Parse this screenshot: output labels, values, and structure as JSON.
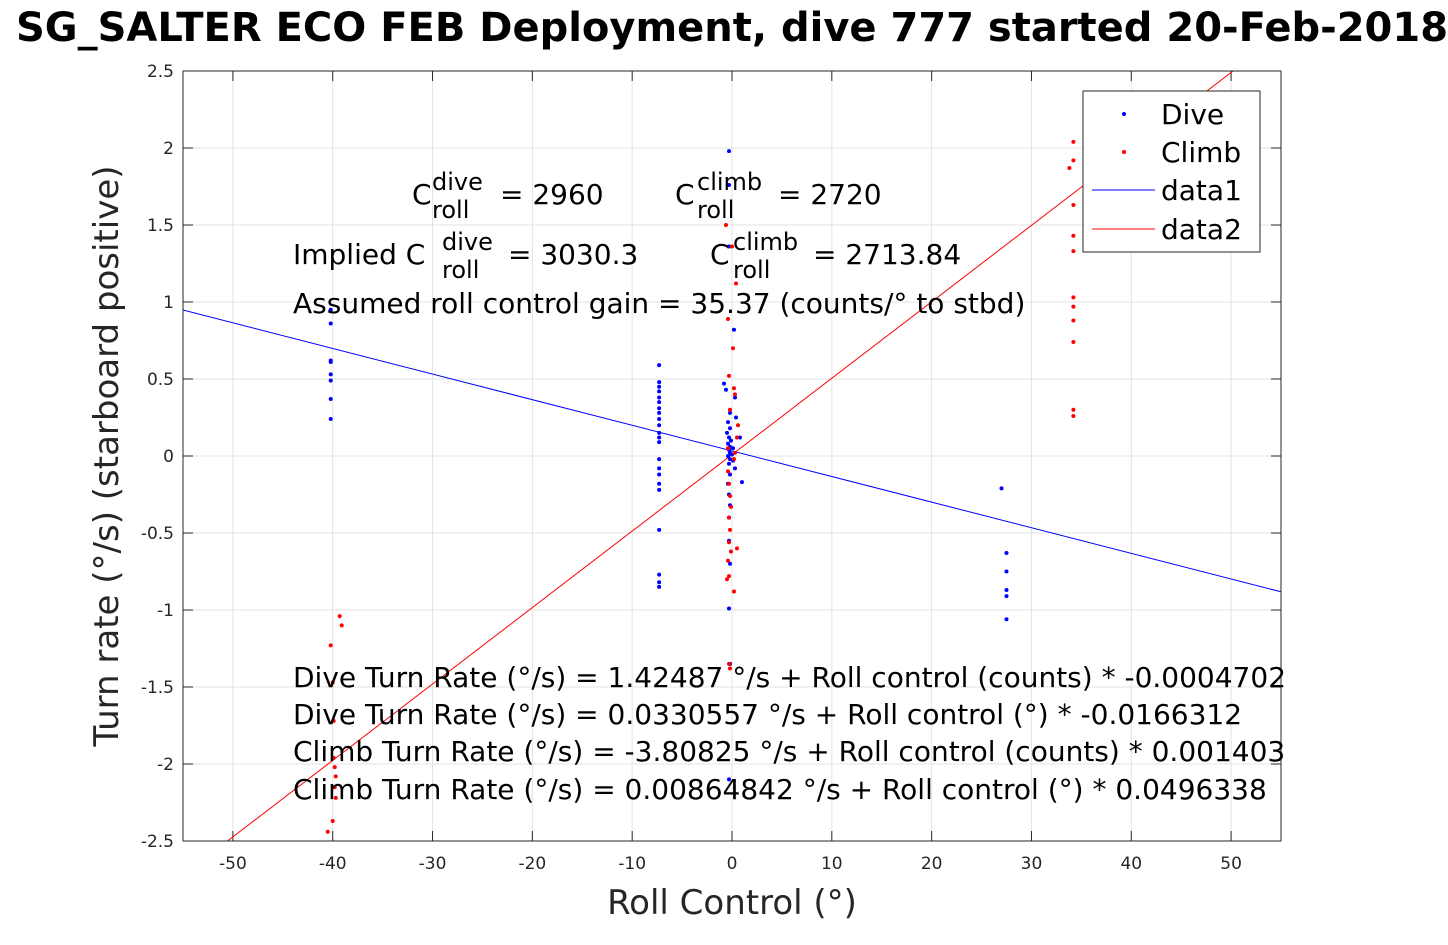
{
  "title": "SG_SALTER ECO FEB Deployment, dive 777 started 20-Feb-2018",
  "chart_data": {
    "type": "scatter",
    "xlabel": "Roll Control (°)",
    "ylabel": "Turn rate (°/s) (starboard positive)",
    "xlim": [
      -55,
      55
    ],
    "ylim": [
      -2.5,
      2.5
    ],
    "xticks": [
      -50,
      -40,
      -30,
      -20,
      -10,
      0,
      10,
      20,
      30,
      40,
      50
    ],
    "yticks": [
      -2.5,
      -2,
      -1.5,
      -1,
      -0.5,
      0,
      0.5,
      1,
      1.5,
      2,
      2.5
    ],
    "xtick_labels": [
      "-50",
      "-40",
      "-30",
      "-20",
      "-10",
      "0",
      "10",
      "20",
      "30",
      "40",
      "50"
    ],
    "ytick_labels": [
      "-2.5",
      "-2",
      "-1.5",
      "-1",
      "-0.5",
      "0",
      "0.5",
      "1",
      "1.5",
      "2",
      "2.5"
    ],
    "grid": true,
    "legend_position": "top-right",
    "legend": [
      "Dive",
      "Climb",
      "data1",
      "data2"
    ],
    "colors": {
      "dive": "#0000ff",
      "climb": "#ff0000"
    },
    "series": [
      {
        "name": "Dive",
        "kind": "points",
        "color": "#0000ff",
        "points": [
          [
            -40.2,
            0.95
          ],
          [
            -40.2,
            0.86
          ],
          [
            -40.2,
            0.62
          ],
          [
            -40.2,
            0.61
          ],
          [
            -40.2,
            0.53
          ],
          [
            -40.2,
            0.49
          ],
          [
            -40.2,
            0.37
          ],
          [
            -40.2,
            0.24
          ],
          [
            -7.3,
            0.59
          ],
          [
            -7.3,
            0.48
          ],
          [
            -7.3,
            0.45
          ],
          [
            -7.3,
            0.42
          ],
          [
            -7.3,
            0.38
          ],
          [
            -7.3,
            0.35
          ],
          [
            -7.3,
            0.31
          ],
          [
            -7.3,
            0.28
          ],
          [
            -7.3,
            0.24
          ],
          [
            -7.3,
            0.2
          ],
          [
            -7.3,
            0.15
          ],
          [
            -7.3,
            0.12
          ],
          [
            -7.3,
            0.09
          ],
          [
            -7.3,
            -0.02
          ],
          [
            -7.3,
            -0.08
          ],
          [
            -7.3,
            -0.12
          ],
          [
            -7.3,
            -0.18
          ],
          [
            -7.3,
            -0.22
          ],
          [
            -7.3,
            -0.48
          ],
          [
            -7.3,
            -0.77
          ],
          [
            -7.3,
            -0.82
          ],
          [
            -7.3,
            -0.85
          ],
          [
            -0.3,
            1.98
          ],
          [
            -0.3,
            1.76
          ],
          [
            -0.3,
            1.36
          ],
          [
            0.2,
            0.82
          ],
          [
            -0.8,
            0.47
          ],
          [
            -0.6,
            0.43
          ],
          [
            0.3,
            0.38
          ],
          [
            -0.2,
            0.28
          ],
          [
            0.4,
            0.25
          ],
          [
            -0.4,
            0.22
          ],
          [
            -0.2,
            0.18
          ],
          [
            -0.5,
            0.15
          ],
          [
            -0.3,
            0.12
          ],
          [
            -0.1,
            0.1
          ],
          [
            -0.4,
            0.08
          ],
          [
            -0.2,
            0.06
          ],
          [
            0.1,
            0.05
          ],
          [
            -0.3,
            0.04
          ],
          [
            -0.2,
            0.02
          ],
          [
            0.0,
            0.01
          ],
          [
            -0.4,
            0.0
          ],
          [
            -0.2,
            -0.02
          ],
          [
            0.1,
            -0.03
          ],
          [
            -0.3,
            -0.05
          ],
          [
            0.3,
            -0.08
          ],
          [
            -0.2,
            -0.12
          ],
          [
            -0.4,
            -0.18
          ],
          [
            -0.3,
            -0.25
          ],
          [
            -0.2,
            -0.32
          ],
          [
            -0.3,
            -0.4
          ],
          [
            -0.3,
            -0.55
          ],
          [
            -0.2,
            -0.7
          ],
          [
            -0.3,
            -0.99
          ],
          [
            -0.2,
            -1.35
          ],
          [
            -0.3,
            -2.1
          ],
          [
            0.8,
            0.12
          ],
          [
            1.0,
            -0.17
          ],
          [
            27.0,
            -0.21
          ],
          [
            27.5,
            -0.63
          ],
          [
            27.5,
            -0.75
          ],
          [
            27.5,
            -0.87
          ],
          [
            27.5,
            -0.91
          ],
          [
            27.5,
            -1.06
          ]
        ]
      },
      {
        "name": "Climb",
        "kind": "points",
        "color": "#ff0000",
        "points": [
          [
            -40.2,
            -1.23
          ],
          [
            -39.3,
            -1.04
          ],
          [
            -39.1,
            -1.1
          ],
          [
            -40.0,
            -1.47
          ],
          [
            -39.9,
            -1.72
          ],
          [
            -39.8,
            -2.02
          ],
          [
            -39.8,
            -2.15
          ],
          [
            -39.7,
            -2.22
          ],
          [
            -40.0,
            -2.37
          ],
          [
            -40.5,
            -2.44
          ],
          [
            -39.9,
            -1.96
          ],
          [
            -39.7,
            -2.08
          ],
          [
            -0.6,
            1.5
          ],
          [
            0.4,
            1.12
          ],
          [
            -0.4,
            0.89
          ],
          [
            0.1,
            0.7
          ],
          [
            -0.3,
            0.52
          ],
          [
            0.2,
            0.44
          ],
          [
            0.3,
            0.4
          ],
          [
            -0.2,
            0.3
          ],
          [
            0.6,
            0.2
          ],
          [
            0.5,
            0.12
          ],
          [
            -0.4,
            0.05
          ],
          [
            0.3,
            0.02
          ],
          [
            0.2,
            -0.02
          ],
          [
            -0.4,
            -0.1
          ],
          [
            -0.3,
            -0.18
          ],
          [
            -0.2,
            -0.26
          ],
          [
            -0.1,
            -0.33
          ],
          [
            -0.3,
            -0.4
          ],
          [
            -0.2,
            -0.48
          ],
          [
            -0.3,
            -0.56
          ],
          [
            0.5,
            -0.6
          ],
          [
            -0.4,
            -0.68
          ],
          [
            -0.3,
            -0.78
          ],
          [
            0.2,
            -0.88
          ],
          [
            -0.3,
            -1.35
          ],
          [
            -0.2,
            -1.38
          ],
          [
            -0.5,
            -0.8
          ],
          [
            -0.1,
            -0.62
          ],
          [
            0.0,
            1.36
          ],
          [
            33.8,
            1.87
          ],
          [
            34.2,
            2.04
          ],
          [
            34.2,
            1.92
          ],
          [
            34.2,
            1.63
          ],
          [
            34.2,
            1.43
          ],
          [
            34.2,
            1.33
          ],
          [
            34.2,
            1.03
          ],
          [
            34.2,
            0.97
          ],
          [
            34.2,
            0.88
          ],
          [
            34.2,
            0.74
          ],
          [
            34.2,
            0.3
          ],
          [
            34.2,
            0.26
          ]
        ]
      },
      {
        "name": "data1",
        "kind": "line",
        "color": "#0000ff",
        "slope": -0.0166312,
        "intercept": 0.0330557
      },
      {
        "name": "data2",
        "kind": "line",
        "color": "#ff0000",
        "slope": 0.0496338,
        "intercept": 0.00864842
      }
    ]
  },
  "annotations": {
    "c_roll_label": "C",
    "sub_roll": "roll",
    "sup_dive": "dive",
    "sup_climb": "climb",
    "c_dive_value": "= 2960",
    "c_climb_value": "= 2720",
    "implied_prefix": "Implied C",
    "implied_dive_value": "= 3030.3",
    "implied_climb_value": "= 2713.84",
    "gain": "Assumed roll control gain = 35.37 (counts/° to stbd)",
    "eq1": "Dive Turn Rate (°/s) = 1.42487 °/s + Roll control (counts) * -0.0004702",
    "eq2": "Dive Turn Rate (°/s) = 0.0330557 °/s + Roll control (°) * -0.0166312",
    "eq3": "Climb Turn Rate (°/s) = -3.80825 °/s + Roll control (counts) * 0.001403",
    "eq4": "Climb Turn Rate (°/s) = 0.00864842 °/s + Roll control (°) * 0.0496338"
  }
}
